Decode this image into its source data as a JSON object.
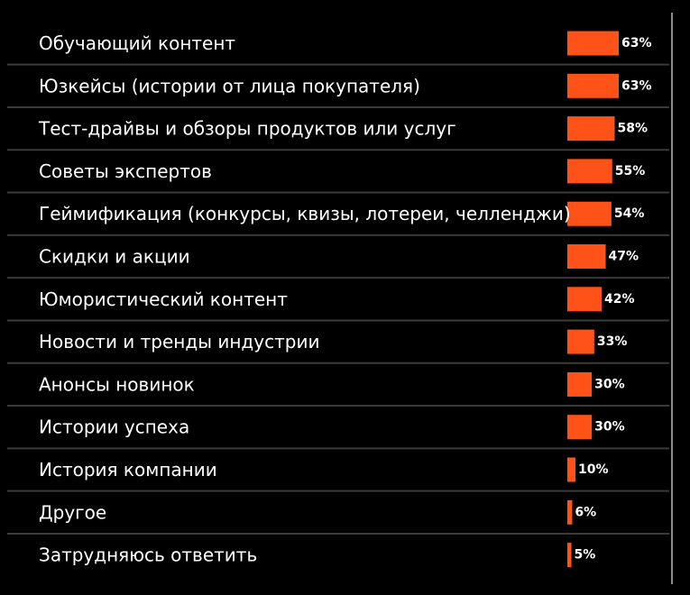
{
  "chart_data": {
    "type": "bar",
    "orientation": "horizontal",
    "title": "",
    "xlabel": "",
    "ylabel": "",
    "xlim": [
      0,
      100
    ],
    "grid": false,
    "legend": "none",
    "categories": [
      "Обучающий контент",
      "Юзкейсы (истории  от лица покупателя)",
      "Тест-драйвы и обзоры продуктов или услуг",
      "Советы экспертов",
      "Геймификация (конкурсы, квизы, лотереи, челленджи)",
      "Скидки и акции",
      "Юмористический контент",
      "Новости и тренды индустрии",
      "Анонсы новинок",
      "Истории успеха",
      "История компании",
      "Другое",
      "Затрудняюсь ответить"
    ],
    "values": [
      63,
      63,
      58,
      55,
      54,
      47,
      42,
      33,
      30,
      30,
      10,
      6,
      5
    ],
    "value_labels": [
      "63%",
      "63%",
      "58%",
      "55%",
      "54%",
      "47%",
      "42%",
      "33%",
      "30%",
      "30%",
      "10%",
      "6%",
      "5%"
    ],
    "colors": {
      "background": "#000000",
      "bar": "#FF5219",
      "text": "#FFFFFF",
      "separator": "#3A3A3A",
      "axis": "#8A8A8A"
    }
  }
}
